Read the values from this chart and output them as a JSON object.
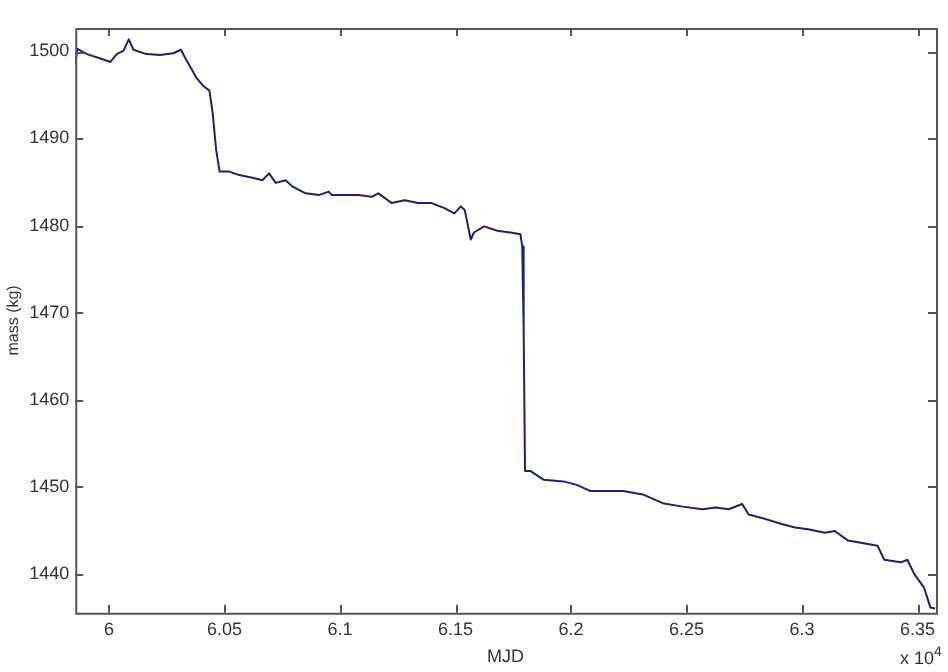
{
  "chart_data": {
    "type": "line",
    "xlabel": "MJD",
    "ylabel": "mass (kg)",
    "annotations": [
      "x 10$^{4}$"
    ],
    "x": [
      5.9854,
      5.9863,
      5.9905,
      5.9963,
      6.0006,
      6.0034,
      6.0063,
      6.0086,
      6.0106,
      6.0163,
      6.0221,
      6.0278,
      6.0312,
      6.0329,
      6.0378,
      6.0406,
      6.0435,
      6.0449,
      6.0464,
      6.0479,
      6.0521,
      6.0564,
      6.0621,
      6.0664,
      6.0693,
      6.0722,
      6.0765,
      6.0793,
      6.0851,
      6.0908,
      6.0951,
      6.0965,
      6.108,
      6.1137,
      6.1166,
      6.1223,
      6.128,
      6.1338,
      6.1394,
      6.1452,
      6.1495,
      6.1523,
      6.154,
      6.1566,
      6.158,
      6.1624,
      6.1681,
      6.1738,
      6.1781,
      6.1789,
      6.1795,
      6.1801,
      6.1824,
      6.1881,
      6.1967,
      6.2025,
      6.2082,
      6.2139,
      6.2225,
      6.2311,
      6.2397,
      6.2483,
      6.2569,
      6.2626,
      6.2683,
      6.2741,
      6.2769,
      6.2826,
      6.2912,
      6.297,
      6.3027,
      6.3099,
      6.3142,
      6.3199,
      6.3285,
      6.3327,
      6.3356,
      6.3428,
      6.3456,
      6.3485,
      6.3528,
      6.3556,
      6.3576
    ],
    "series": [
      {
        "color": "#1f1f7a",
        "values": [
          1498.6,
          1500.3,
          1499.7,
          1499.2,
          1498.8,
          1499.7,
          1500.1,
          1501.4,
          1500.2,
          1499.7,
          1499.6,
          1499.8,
          1500.2,
          1499.3,
          1497.0,
          1496.1,
          1495.5,
          1492.9,
          1488.7,
          1486.2,
          1486.2,
          1485.8,
          1485.5,
          1485.2,
          1486.0,
          1484.9,
          1485.2,
          1484.5,
          1483.7,
          1483.5,
          1483.9,
          1483.5,
          1483.5,
          1483.3,
          1483.7,
          1482.6,
          1482.9,
          1482.6,
          1482.6,
          1482.0,
          1481.4,
          1482.2,
          1481.8,
          1478.4,
          1479.2,
          1479.9,
          1479.4,
          1479.2,
          1479.0,
          1477.6,
          1468.1,
          1451.8,
          1451.8,
          1450.8,
          1450.6,
          1450.2,
          1449.5,
          1449.5,
          1449.5,
          1449.1,
          1448.1,
          1447.7,
          1447.4,
          1447.6,
          1447.4,
          1448.0,
          1446.8,
          1446.4,
          1445.7,
          1445.3,
          1445.1,
          1444.7,
          1444.9,
          1443.8,
          1443.4,
          1443.2,
          1441.6,
          1441.3,
          1441.6,
          1440.0,
          1438.4,
          1436.1,
          1436.0
        ]
      }
    ],
    "xlim": [
      5.9854,
      6.358
    ],
    "xticks": [
      6,
      6.05,
      6.1,
      6.15,
      6.2,
      6.25,
      6.3,
      6.35
    ],
    "ylim": [
      1435.5,
      1502.7
    ],
    "yticks": [
      1440,
      1450,
      1460,
      1470,
      1480,
      1490,
      1500
    ],
    "marker": "none",
    "line_style": "solid"
  }
}
